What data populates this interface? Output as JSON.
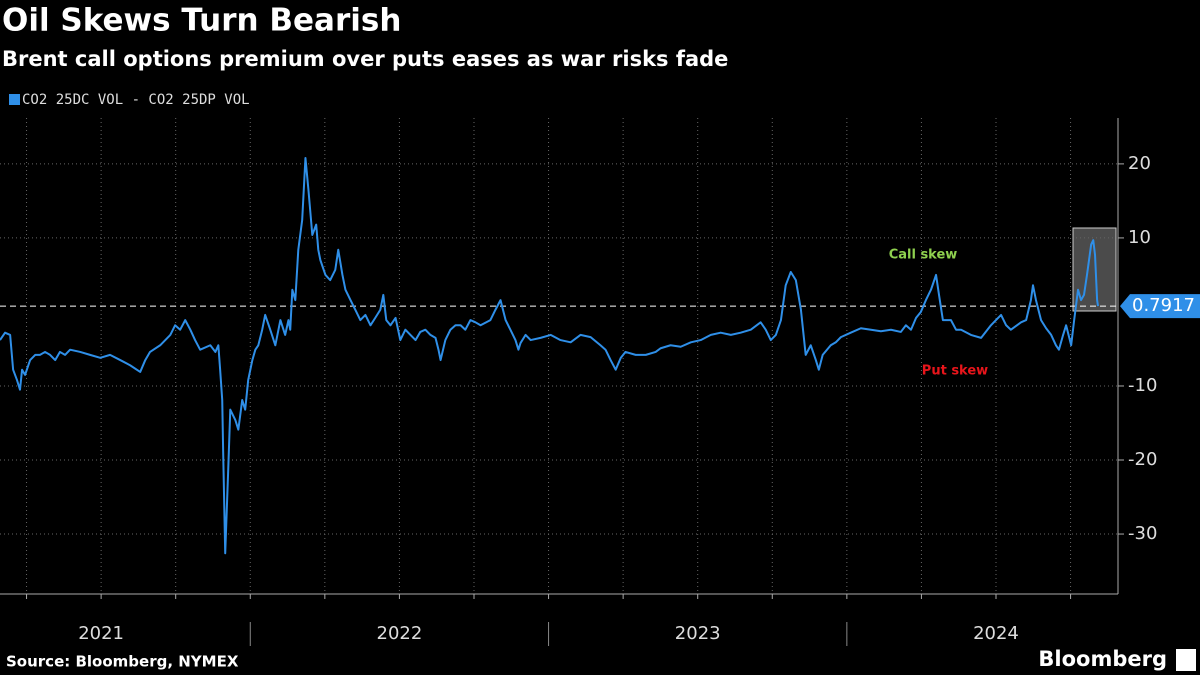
{
  "chart_data": {
    "type": "line",
    "title": "Oil Skews Turn Bearish",
    "subtitle": "Brent call options premium over puts eases as war risks fade",
    "source": "Source: Bloomberg, NYMEX",
    "credit": "Bloomberg",
    "annotations": [
      {
        "text": "Call skew",
        "color": "#8fd14f"
      },
      {
        "text": "Put skew",
        "color": "#e8151b"
      }
    ],
    "xlim": [
      2021.161,
      2024.909
    ],
    "xticks": [
      {
        "value": 2021.5,
        "label": "2021"
      },
      {
        "value": 2022.5,
        "label": "2022"
      },
      {
        "value": 2023.5,
        "label": "2023"
      },
      {
        "value": 2024.5,
        "label": "2024"
      }
    ],
    "x_gridlines": [
      2021.25,
      2021.5,
      2021.75,
      2022,
      2022.25,
      2022.5,
      2022.75,
      2023,
      2023.25,
      2023.5,
      2023.75,
      2024,
      2024.25,
      2024.5,
      2024.75
    ],
    "ylim": [
      -38.1,
      26.2
    ],
    "yticks": [
      -30,
      -20,
      -10,
      10,
      20
    ],
    "grid": true,
    "x": [
      2021.161,
      2021.178,
      2021.195,
      2021.205,
      2021.218,
      2021.228,
      2021.235,
      2021.245,
      2021.262,
      2021.279,
      2021.295,
      2021.312,
      2021.329,
      2021.346,
      2021.362,
      2021.379,
      2021.396,
      2021.43,
      2021.463,
      2021.497,
      2021.53,
      2021.564,
      2021.597,
      2021.631,
      2021.648,
      2021.664,
      2021.698,
      2021.732,
      2021.748,
      2021.765,
      2021.782,
      2021.799,
      2021.815,
      2021.832,
      2021.866,
      2021.883,
      2021.893,
      2021.899,
      2021.906,
      2021.909,
      2021.916,
      2021.926,
      2021.933,
      2021.95,
      2021.96,
      2021.973,
      2021.983,
      2021.993,
      2022.007,
      2022.017,
      2022.027,
      2022.04,
      2022.05,
      2022.067,
      2022.084,
      2022.101,
      2022.117,
      2022.128,
      2022.134,
      2022.141,
      2022.151,
      2022.161,
      2022.174,
      2022.185,
      2022.195,
      2022.208,
      2022.221,
      2022.228,
      2022.235,
      2022.252,
      2022.268,
      2022.285,
      2022.295,
      2022.309,
      2022.319,
      2022.336,
      2022.352,
      2022.369,
      2022.386,
      2022.403,
      2022.419,
      2022.436,
      2022.446,
      2022.456,
      2022.47,
      2022.487,
      2022.503,
      2022.52,
      2022.537,
      2022.554,
      2022.57,
      2022.587,
      2022.604,
      2022.621,
      2022.631,
      2022.638,
      2022.654,
      2022.671,
      2022.688,
      2022.705,
      2022.721,
      2022.738,
      2022.755,
      2022.772,
      2022.805,
      2022.822,
      2022.839,
      2022.856,
      2022.872,
      2022.889,
      2022.899,
      2022.906,
      2022.923,
      2022.94,
      2022.973,
      2023.007,
      2023.04,
      2023.074,
      2023.107,
      2023.141,
      2023.174,
      2023.191,
      2023.208,
      2023.225,
      2023.242,
      2023.258,
      2023.292,
      2023.326,
      2023.359,
      2023.376,
      2023.409,
      2023.443,
      2023.477,
      2023.51,
      2023.544,
      2023.577,
      2023.611,
      2023.644,
      2023.678,
      2023.711,
      2023.728,
      2023.745,
      2023.762,
      2023.779,
      2023.795,
      2023.812,
      2023.829,
      2023.846,
      2023.862,
      2023.879,
      2023.896,
      2023.906,
      2023.919,
      2023.946,
      2023.963,
      2023.98,
      2024.013,
      2024.047,
      2024.081,
      2024.114,
      2024.148,
      2024.181,
      2024.198,
      2024.215,
      2024.232,
      2024.248,
      2024.265,
      2024.282,
      2024.299,
      2024.309,
      2024.322,
      2024.349,
      2024.366,
      2024.383,
      2024.416,
      2024.45,
      2024.483,
      2024.5,
      2024.517,
      2024.534,
      2024.55,
      2024.584,
      2024.601,
      2024.617,
      2024.624,
      2024.634,
      2024.651,
      2024.668,
      2024.685,
      2024.701,
      2024.711,
      2024.725,
      2024.735,
      2024.752,
      2024.762,
      2024.775,
      2024.785,
      2024.795,
      2024.805,
      2024.819,
      2024.826,
      2024.832,
      2024.839,
      2024.842
    ],
    "series": [
      {
        "name": "CO2 25DC VOL - CO2 25DP VOL",
        "color": "#2f8fe8",
        "values": [
          -3.8,
          -2.8,
          -3.1,
          -7.8,
          -9.2,
          -10.5,
          -7.8,
          -8.5,
          -6.5,
          -5.8,
          -5.8,
          -5.4,
          -5.8,
          -6.5,
          -5.4,
          -5.8,
          -5.1,
          -5.4,
          -5.8,
          -6.2,
          -5.8,
          -6.5,
          -7.2,
          -8.1,
          -6.5,
          -5.4,
          -4.5,
          -3.1,
          -1.8,
          -2.4,
          -1.1,
          -2.4,
          -3.8,
          -5.1,
          -4.5,
          -5.4,
          -4.5,
          -7.8,
          -11.9,
          -18.6,
          -32.6,
          -21.4,
          -13.2,
          -14.6,
          -15.9,
          -11.9,
          -13.2,
          -9.2,
          -6.5,
          -5.1,
          -4.5,
          -2.4,
          -0.4,
          -2.4,
          -4.5,
          -1.1,
          -3.1,
          -1.1,
          -2.4,
          3.0,
          1.6,
          8.4,
          12.4,
          20.8,
          16.5,
          10.4,
          11.8,
          8.4,
          7.0,
          5.0,
          4.3,
          5.7,
          8.4,
          5.0,
          3.0,
          1.6,
          0.3,
          -1.1,
          -0.4,
          -1.8,
          -0.8,
          0.3,
          2.3,
          -1.1,
          -1.8,
          -0.8,
          -3.8,
          -2.4,
          -3.1,
          -3.8,
          -2.7,
          -2.4,
          -3.1,
          -3.5,
          -5.1,
          -6.5,
          -3.8,
          -2.4,
          -1.8,
          -1.8,
          -2.4,
          -1.1,
          -1.4,
          -1.8,
          -1.1,
          0.3,
          1.6,
          -1.1,
          -2.4,
          -3.8,
          -5.1,
          -4.2,
          -3.1,
          -3.8,
          -3.5,
          -3.1,
          -3.8,
          -4.1,
          -3.1,
          -3.4,
          -4.5,
          -5.1,
          -6.5,
          -7.8,
          -6.2,
          -5.4,
          -5.8,
          -5.8,
          -5.4,
          -4.9,
          -4.5,
          -4.7,
          -4.1,
          -3.8,
          -3.1,
          -2.8,
          -3.1,
          -2.8,
          -2.4,
          -1.4,
          -2.4,
          -3.8,
          -3.1,
          -1.1,
          3.6,
          5.4,
          4.3,
          0.3,
          -5.8,
          -4.5,
          -6.5,
          -7.8,
          -5.8,
          -4.5,
          -4.1,
          -3.4,
          -2.8,
          -2.2,
          -2.4,
          -2.6,
          -2.4,
          -2.7,
          -1.8,
          -2.4,
          -0.8,
          0,
          1.6,
          3.0,
          5.0,
          2.3,
          -1.1,
          -1.1,
          -2.4,
          -2.4,
          -3.1,
          -3.5,
          -1.8,
          -1.1,
          -0.4,
          -1.8,
          -2.4,
          -1.4,
          -1.1,
          1.6,
          3.6,
          1.6,
          -1.1,
          -2.2,
          -3.1,
          -4.5,
          -5.1,
          -3.1,
          -1.8,
          -4.5,
          -1.1,
          3.0,
          1.6,
          2.3,
          5.0,
          9.1,
          9.7,
          7.7,
          1.6,
          0.7917
        ]
      }
    ]
  }
}
